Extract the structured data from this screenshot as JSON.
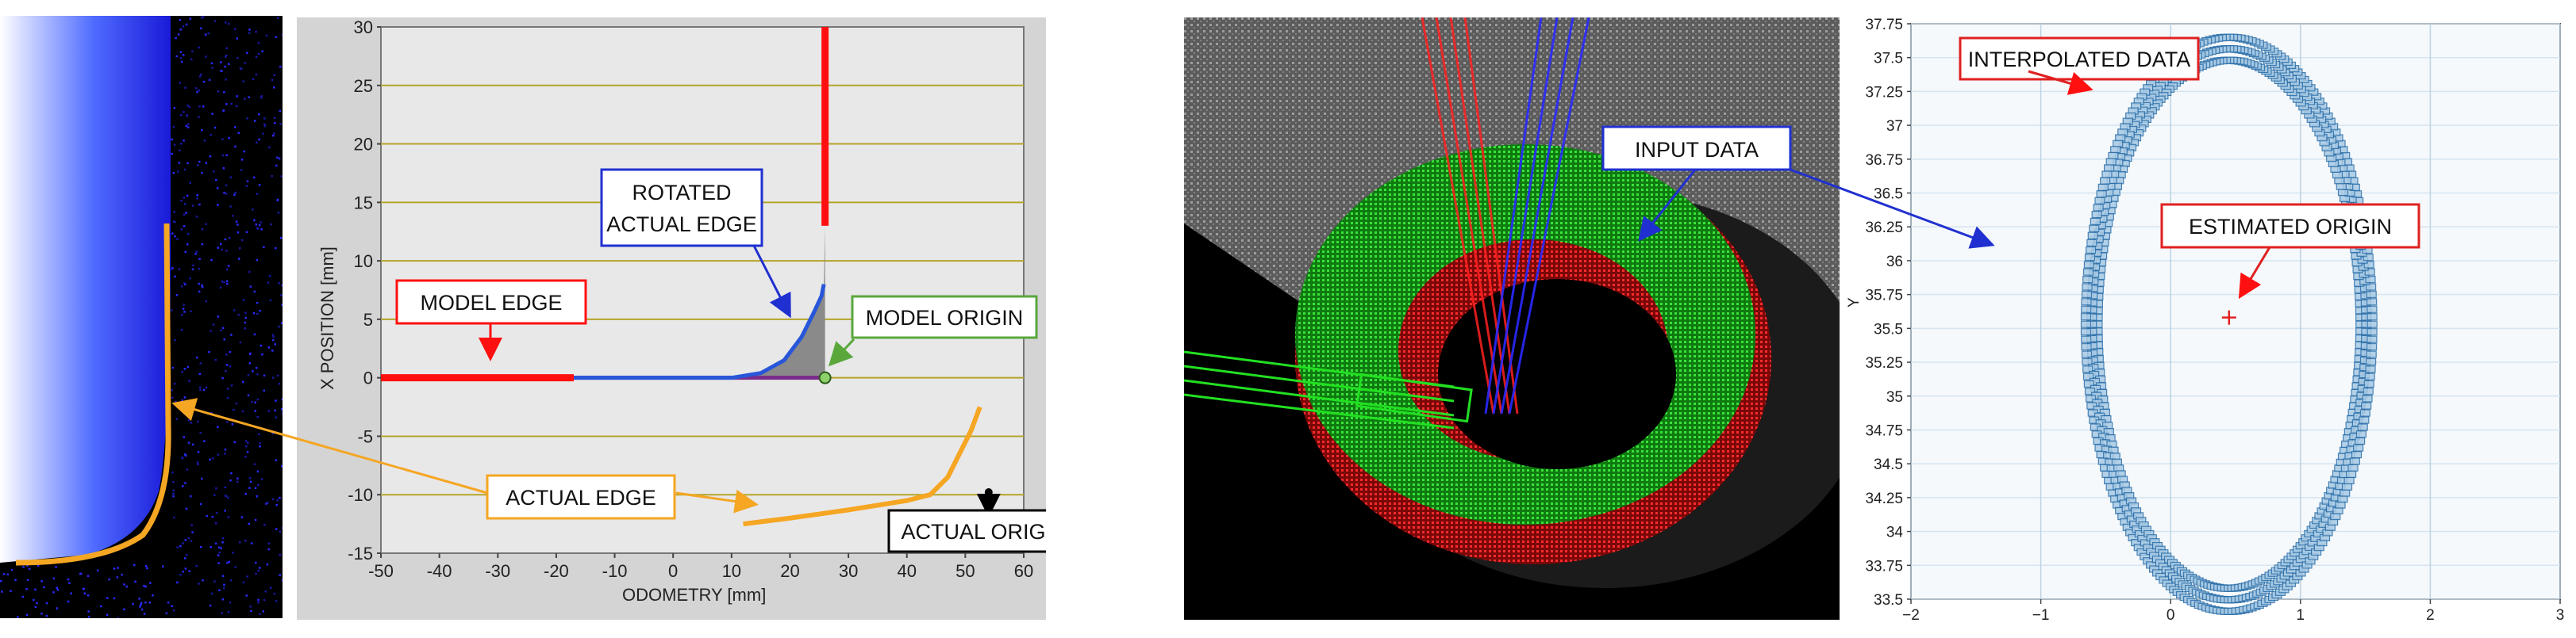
{
  "colors": {
    "model_edge": "#ff1010",
    "actual_edge": "#f5a623",
    "rotated_edge": "#2856d9",
    "model_origin": "#5aa83c",
    "actual_origin": "#000000",
    "interp": "#2a6ea8",
    "input_green": "#19c41a",
    "input_red": "#e01515",
    "input_blue": "#2a2aff",
    "est_origin": "#e02020"
  },
  "chart_data": [
    {
      "type": "line",
      "xlabel": "ODOMETRY [mm]",
      "ylabel": "X POSITION [mm]",
      "xlim": [
        -50,
        60
      ],
      "ylim": [
        -15,
        30
      ],
      "x_ticks": [
        -50,
        -40,
        -30,
        -20,
        -10,
        0,
        10,
        20,
        30,
        40,
        50,
        60
      ],
      "y_ticks": [
        -15,
        -10,
        -5,
        0,
        5,
        10,
        15,
        20,
        25,
        30
      ],
      "grid": true,
      "series": [
        {
          "name": "MODEL EDGE",
          "x": [
            -50,
            -17,
            -17,
            26,
            26,
            26
          ],
          "y": [
            0,
            0,
            0,
            0,
            13,
            30
          ]
        },
        {
          "name": "ROTATED ACTUAL EDGE",
          "x": [
            -17,
            10,
            15,
            19,
            22,
            24,
            25.4,
            25.8
          ],
          "y": [
            0,
            0,
            0.4,
            1.5,
            3.5,
            5.5,
            7,
            8
          ]
        },
        {
          "name": "ACTUAL EDGE",
          "x": [
            12,
            20,
            30,
            40,
            44,
            47,
            49,
            51,
            52.5
          ],
          "y": [
            -12.5,
            -12,
            -11.3,
            -10.5,
            -10,
            -8.5,
            -6.5,
            -4.5,
            -2.5
          ]
        },
        {
          "name": "MODEL ORIGIN",
          "x": [
            26
          ],
          "y": [
            0
          ]
        },
        {
          "name": "ACTUAL ORIGIN",
          "x": [
            54
          ],
          "y": [
            -11
          ]
        }
      ],
      "annotations": [
        "MODEL EDGE",
        "ROTATED ACTUAL EDGE",
        "MODEL ORIGIN",
        "ACTUAL EDGE",
        "ACTUAL ORIGIN"
      ]
    },
    {
      "type": "scatter",
      "xlabel": "",
      "ylabel": "Y",
      "xlim": [
        -2,
        3
      ],
      "ylim": [
        33.5,
        37.75
      ],
      "x_ticks": [
        -2,
        -1,
        0,
        1,
        2,
        3
      ],
      "y_ticks": [
        33.5,
        33.75,
        34,
        34.25,
        34.5,
        34.75,
        35,
        35.25,
        35.5,
        35.75,
        36,
        36.25,
        36.5,
        36.75,
        37,
        37.25,
        37.5,
        37.75
      ],
      "grid": true,
      "circle": {
        "cx": 0.45,
        "cy": 35.53,
        "r_inner": 1.95,
        "r_outer": 2.12
      },
      "estimated_origin": {
        "x": 0.45,
        "y": 35.58
      },
      "annotations": [
        "INTERPOLATED DATA",
        "INPUT DATA",
        "ESTIMATED ORIGIN"
      ]
    }
  ],
  "labels": {
    "model_edge": "MODEL EDGE",
    "rotated_line1": "ROTATED",
    "rotated_line2": "ACTUAL EDGE",
    "model_origin": "MODEL ORIGIN",
    "actual_edge": "ACTUAL EDGE",
    "actual_origin": "ACTUAL ORIGIN",
    "interpolated_data": "INTERPOLATED DATA",
    "input_data": "INPUT DATA",
    "estimated_origin": "ESTIMATED ORIGIN"
  }
}
